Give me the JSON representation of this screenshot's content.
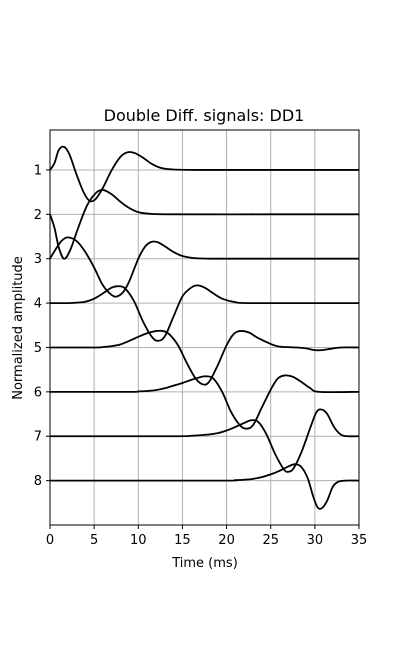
{
  "chart_data": {
    "type": "line",
    "title": "Double Diff. signals: DD1",
    "xlabel": "Time (ms)",
    "ylabel": "Normalized amplitude",
    "xlim": [
      0,
      35
    ],
    "ylim": [
      9.0,
      0.1
    ],
    "y_inverted": true,
    "grid": true,
    "x_ticks": [
      "0",
      "5",
      "10",
      "15",
      "20",
      "25",
      "30",
      "35"
    ],
    "y_ticks": [
      "1",
      "2",
      "3",
      "4",
      "5",
      "6",
      "7",
      "8"
    ],
    "line_color": "#000000",
    "series": [
      {
        "baseline": 1,
        "points": [
          [
            0,
            1
          ],
          [
            0.5,
            0.85
          ],
          [
            1.0,
            0.55
          ],
          [
            1.6,
            0.48
          ],
          [
            2.2,
            0.65
          ],
          [
            3.0,
            1.1
          ],
          [
            3.8,
            1.5
          ],
          [
            4.5,
            1.7
          ],
          [
            5.2,
            1.65
          ],
          [
            6.0,
            1.4
          ],
          [
            7.0,
            1.0
          ],
          [
            8.0,
            0.7
          ],
          [
            8.8,
            0.6
          ],
          [
            9.6,
            0.62
          ],
          [
            10.5,
            0.72
          ],
          [
            11.5,
            0.86
          ],
          [
            12.5,
            0.95
          ],
          [
            14,
            0.99
          ],
          [
            17,
            1.0
          ],
          [
            25,
            1.0
          ],
          [
            35,
            1.0
          ]
        ]
      },
      {
        "baseline": 2,
        "points": [
          [
            0,
            2
          ],
          [
            0.5,
            2.3
          ],
          [
            1.0,
            2.75
          ],
          [
            1.6,
            3.0
          ],
          [
            2.3,
            2.8
          ],
          [
            3.2,
            2.3
          ],
          [
            4.2,
            1.8
          ],
          [
            5.2,
            1.52
          ],
          [
            6.0,
            1.45
          ],
          [
            7.0,
            1.55
          ],
          [
            8.0,
            1.72
          ],
          [
            9.0,
            1.86
          ],
          [
            10.0,
            1.95
          ],
          [
            11.5,
            1.99
          ],
          [
            14,
            2.0
          ],
          [
            25,
            2.0
          ],
          [
            35,
            2.0
          ]
        ]
      },
      {
        "baseline": 3,
        "points": [
          [
            0,
            3
          ],
          [
            0.6,
            2.8
          ],
          [
            1.3,
            2.6
          ],
          [
            2.0,
            2.52
          ],
          [
            3.0,
            2.6
          ],
          [
            4.0,
            2.85
          ],
          [
            5.0,
            3.2
          ],
          [
            6.0,
            3.6
          ],
          [
            7.0,
            3.82
          ],
          [
            7.6,
            3.85
          ],
          [
            8.3,
            3.75
          ],
          [
            9.0,
            3.5
          ],
          [
            10.0,
            3.0
          ],
          [
            10.8,
            2.72
          ],
          [
            11.5,
            2.62
          ],
          [
            12.2,
            2.63
          ],
          [
            13.0,
            2.72
          ],
          [
            14,
            2.85
          ],
          [
            15,
            2.94
          ],
          [
            16.5,
            2.99
          ],
          [
            19,
            3.0
          ],
          [
            25,
            3.0
          ],
          [
            35,
            3.0
          ]
        ]
      },
      {
        "baseline": 4,
        "points": [
          [
            0,
            4
          ],
          [
            2,
            4
          ],
          [
            3,
            3.99
          ],
          [
            4,
            3.97
          ],
          [
            5,
            3.9
          ],
          [
            6,
            3.78
          ],
          [
            7,
            3.65
          ],
          [
            7.8,
            3.62
          ],
          [
            8.5,
            3.67
          ],
          [
            9.5,
            3.95
          ],
          [
            10.5,
            4.4
          ],
          [
            11.5,
            4.75
          ],
          [
            12.2,
            4.85
          ],
          [
            13,
            4.75
          ],
          [
            14,
            4.3
          ],
          [
            15,
            3.85
          ],
          [
            16,
            3.65
          ],
          [
            16.7,
            3.6
          ],
          [
            17.5,
            3.65
          ],
          [
            18.5,
            3.78
          ],
          [
            19.5,
            3.9
          ],
          [
            21,
            3.98
          ],
          [
            23,
            4.0
          ],
          [
            35,
            4.0
          ]
        ]
      },
      {
        "baseline": 5,
        "points": [
          [
            0,
            5
          ],
          [
            5,
            5
          ],
          [
            6,
            4.99
          ],
          [
            7,
            4.97
          ],
          [
            8,
            4.93
          ],
          [
            9,
            4.85
          ],
          [
            10,
            4.76
          ],
          [
            11,
            4.68
          ],
          [
            12,
            4.63
          ],
          [
            12.8,
            4.63
          ],
          [
            13.5,
            4.7
          ],
          [
            14.5,
            4.95
          ],
          [
            15.5,
            5.35
          ],
          [
            16.5,
            5.7
          ],
          [
            17.3,
            5.83
          ],
          [
            18.0,
            5.78
          ],
          [
            19,
            5.4
          ],
          [
            20,
            4.95
          ],
          [
            20.8,
            4.7
          ],
          [
            21.5,
            4.63
          ],
          [
            22.5,
            4.66
          ],
          [
            23.5,
            4.78
          ],
          [
            25,
            4.92
          ],
          [
            26,
            4.98
          ],
          [
            28,
            5.0
          ],
          [
            29,
            5.02
          ],
          [
            30,
            5.06
          ],
          [
            30.8,
            5.06
          ],
          [
            31.8,
            5.03
          ],
          [
            33,
            5.0
          ],
          [
            35,
            5.0
          ]
        ]
      },
      {
        "baseline": 6,
        "points": [
          [
            0,
            6
          ],
          [
            9,
            6
          ],
          [
            10,
            5.99
          ],
          [
            11,
            5.98
          ],
          [
            12,
            5.96
          ],
          [
            13,
            5.92
          ],
          [
            14,
            5.86
          ],
          [
            15,
            5.8
          ],
          [
            16,
            5.73
          ],
          [
            17,
            5.67
          ],
          [
            17.7,
            5.65
          ],
          [
            18.5,
            5.7
          ],
          [
            19.5,
            6.0
          ],
          [
            20.5,
            6.45
          ],
          [
            21.5,
            6.75
          ],
          [
            22.2,
            6.83
          ],
          [
            23,
            6.75
          ],
          [
            24,
            6.35
          ],
          [
            25,
            5.95
          ],
          [
            25.8,
            5.7
          ],
          [
            26.6,
            5.63
          ],
          [
            27.5,
            5.66
          ],
          [
            28.5,
            5.78
          ],
          [
            29.5,
            5.92
          ],
          [
            30.5,
            6.0
          ],
          [
            35,
            6.0
          ]
        ]
      },
      {
        "baseline": 7,
        "points": [
          [
            0,
            7
          ],
          [
            14,
            7
          ],
          [
            16,
            6.99
          ],
          [
            18,
            6.96
          ],
          [
            19,
            6.93
          ],
          [
            20,
            6.87
          ],
          [
            21,
            6.79
          ],
          [
            22,
            6.7
          ],
          [
            22.8,
            6.64
          ],
          [
            23.6,
            6.68
          ],
          [
            24.5,
            6.95
          ],
          [
            25.5,
            7.4
          ],
          [
            26.5,
            7.75
          ],
          [
            27.0,
            7.8
          ],
          [
            27.6,
            7.72
          ],
          [
            28.5,
            7.35
          ],
          [
            29.5,
            6.8
          ],
          [
            30.2,
            6.45
          ],
          [
            30.8,
            6.4
          ],
          [
            31.4,
            6.5
          ],
          [
            32.2,
            6.8
          ],
          [
            33,
            6.97
          ],
          [
            33.8,
            7.0
          ],
          [
            35,
            7.0
          ]
        ]
      },
      {
        "baseline": 8,
        "points": [
          [
            0,
            8
          ],
          [
            19,
            8
          ],
          [
            21,
            7.99
          ],
          [
            22,
            7.98
          ],
          [
            23,
            7.96
          ],
          [
            24,
            7.92
          ],
          [
            25,
            7.86
          ],
          [
            26,
            7.78
          ],
          [
            27,
            7.68
          ],
          [
            27.8,
            7.63
          ],
          [
            28.5,
            7.7
          ],
          [
            29.2,
            7.95
          ],
          [
            29.8,
            8.35
          ],
          [
            30.3,
            8.6
          ],
          [
            30.8,
            8.62
          ],
          [
            31.4,
            8.45
          ],
          [
            32.0,
            8.15
          ],
          [
            32.6,
            8.03
          ],
          [
            33.5,
            8.0
          ],
          [
            35,
            8.0
          ]
        ]
      }
    ]
  }
}
